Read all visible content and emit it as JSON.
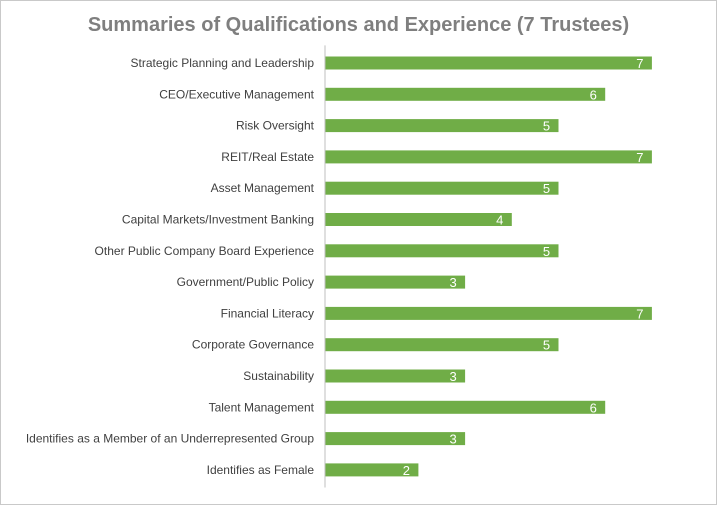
{
  "chart_data": {
    "type": "bar",
    "orientation": "horizontal",
    "title": "Summaries of Qualifications and Experience (7 Trustees)",
    "categories": [
      "Strategic Planning and Leadership",
      "CEO/Executive Management",
      "Risk Oversight",
      "REIT/Real Estate",
      "Asset Management",
      "Capital Markets/Investment Banking",
      "Other Public Company Board Experience",
      "Government/Public Policy",
      "Financial Literacy",
      "Corporate Governance",
      "Sustainability",
      "Talent Management",
      "Identifies as a Member of an Underrepresented Group",
      "Identifies as Female"
    ],
    "values": [
      7,
      6,
      5,
      7,
      5,
      4,
      5,
      3,
      7,
      5,
      3,
      6,
      3,
      2
    ],
    "xlim": [
      0,
      7
    ],
    "grid": false,
    "legend": "none",
    "data_labels": "inside-end",
    "colors": {
      "bar": "#70ad47",
      "axis": "#bfbfbf",
      "title": "#7f7f7f",
      "label": "#404040",
      "data_label": "#ffffff"
    }
  }
}
